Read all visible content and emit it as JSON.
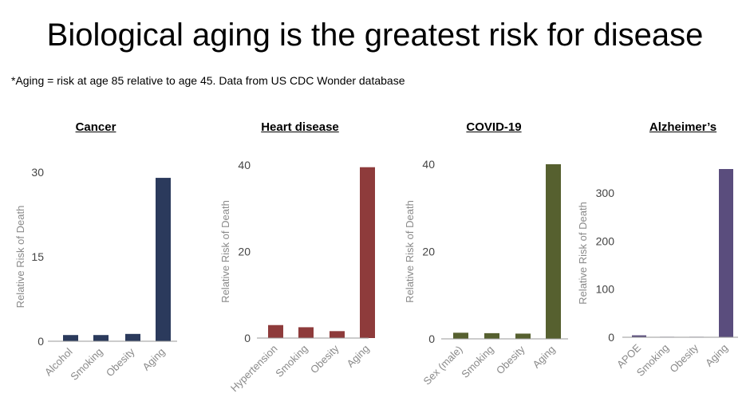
{
  "title": "Biological aging is the greatest risk for disease",
  "subtitle": "*Aging = risk at age 85 relative to age 45.  Data from US CDC Wonder database",
  "chart_data": [
    {
      "type": "bar",
      "title": "Cancer",
      "ylabel": "Relative Risk of Death",
      "xlabel": "",
      "categories": [
        "Alcohol",
        "Smoking",
        "Obesity",
        "Aging"
      ],
      "values": [
        1.1,
        1.1,
        1.3,
        29
      ],
      "ylim": [
        0,
        30
      ],
      "yticks": [
        0,
        15,
        30
      ],
      "color": "#2b3a5c"
    },
    {
      "type": "bar",
      "title": "Heart disease",
      "ylabel": "Relative Risk of Death",
      "xlabel": "",
      "categories": [
        "Hypertension",
        "Smoking",
        "Obesity",
        "Aging"
      ],
      "values": [
        3,
        2.5,
        1.6,
        39.5
      ],
      "ylim": [
        0,
        40
      ],
      "yticks": [
        0,
        20,
        40
      ],
      "color": "#8e3b3b"
    },
    {
      "type": "bar",
      "title": "COVID-19",
      "ylabel": "Relative Risk of Death",
      "xlabel": "",
      "categories": [
        "Sex (male)",
        "Smoking",
        "Obesity",
        "Aging"
      ],
      "values": [
        1.4,
        1.3,
        1.2,
        40
      ],
      "ylim": [
        0,
        40
      ],
      "yticks": [
        0,
        20,
        40
      ],
      "color": "#56602f"
    },
    {
      "type": "bar",
      "title": "Alzheimer’s",
      "ylabel": "Relative Risk of Death",
      "xlabel": "",
      "categories": [
        "APOE",
        "Smoking",
        "Obesity",
        "Aging"
      ],
      "values": [
        4,
        1,
        1,
        350
      ],
      "ylim": [
        0,
        350
      ],
      "yticks": [
        0,
        100,
        200,
        300
      ],
      "color": "#5a4d7d"
    }
  ]
}
